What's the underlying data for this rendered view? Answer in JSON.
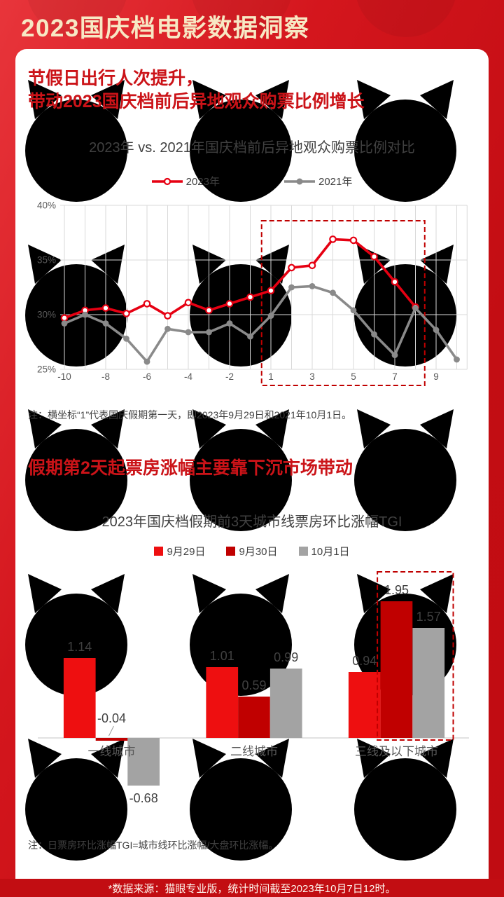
{
  "page": {
    "title": "2023国庆档电影数据洞察",
    "footer": "*数据来源：猫眼专业版，统计时间截至2023年10月7日12时。"
  },
  "icons": {
    "watermark": "maoyan-cat-face",
    "legend_2023_marker": "red-line-open-circle",
    "legend_2021_marker": "gray-line-dot"
  },
  "colors": {
    "background_red": "#d4161d",
    "header_title": "#f7e8c4",
    "heading_red": "#cb1318",
    "series_2023_red": "#e60012",
    "series_2021_gray": "#8a8a8a",
    "bar_red": "#ee0f10",
    "bar_dark_red": "#c00000",
    "bar_gray": "#a3a3a3",
    "grid": "#d9d9d9",
    "highlight_box": "#c00000",
    "footer_band": "#c20d12"
  },
  "section1": {
    "heading_line1": "节假日出行人次提升，",
    "heading_line2": "带动2023国庆档前后异地观众购票比例增长",
    "note": "注：横坐标“1”代表国庆假期第一天，即2023年9月29日和2021年10月1日。"
  },
  "section2": {
    "heading": "假期第2天起票房涨幅主要靠下沉市场带动",
    "note": "注：日票房环比涨幅TGI=城市线环比涨幅/大盘环比涨幅。"
  },
  "chart_data": [
    {
      "type": "line",
      "title": "2023年 vs. 2021年国庆档前后异地观众购票比例对比",
      "legend_position": "top",
      "grid": true,
      "grid_color": "#d9d9d9",
      "x": [
        -10,
        -9,
        -8,
        -7,
        -6,
        -5,
        -4,
        -3,
        -2,
        -1,
        1,
        2,
        3,
        4,
        5,
        6,
        7,
        8,
        9,
        10
      ],
      "x_ticks": [
        -10,
        -8,
        -6,
        -4,
        -2,
        1,
        3,
        5,
        7,
        9
      ],
      "ylim": [
        25,
        40
      ],
      "y_ticks": [
        {
          "v": 40,
          "label": "40%"
        },
        {
          "v": 35,
          "label": "35%"
        },
        {
          "v": 30,
          "label": "30%"
        },
        {
          "v": 25,
          "label": "25%"
        }
      ],
      "series": [
        {
          "name": "2023年",
          "color": "#e60012",
          "marker": "open-circle",
          "values": [
            29.7,
            30.4,
            30.6,
            30.1,
            31.0,
            29.9,
            31.1,
            30.4,
            31.0,
            31.6,
            32.2,
            34.3,
            34.5,
            36.9,
            36.8,
            35.3,
            33.0,
            30.7,
            null,
            null
          ]
        },
        {
          "name": "2021年",
          "color": "#8a8a8a",
          "marker": "dot",
          "values": [
            29.2,
            30.0,
            29.2,
            27.8,
            25.7,
            28.7,
            28.4,
            28.4,
            29.2,
            28.0,
            29.9,
            32.5,
            32.6,
            32.0,
            30.4,
            28.2,
            26.3,
            30.6,
            28.6,
            25.9
          ]
        }
      ],
      "highlight_box": {
        "from_x": 1,
        "to_x": 8,
        "color": "#c00000",
        "style": "dashed"
      }
    },
    {
      "type": "bar",
      "title": "2023年国庆档假期前3天城市线票房环比涨幅TGI",
      "legend_position": "top",
      "grid": false,
      "categories": [
        "一线城市",
        "二线城市",
        "三线及以下城市"
      ],
      "series": [
        {
          "name": "9月29日",
          "color": "#ee0f10",
          "values": [
            1.14,
            1.01,
            0.94
          ]
        },
        {
          "name": "9月30日",
          "color": "#c00000",
          "values": [
            -0.04,
            0.59,
            1.95
          ]
        },
        {
          "name": "10月1日",
          "color": "#a3a3a3",
          "values": [
            -0.68,
            0.99,
            1.57
          ]
        }
      ],
      "highlight_box": {
        "category": "三线及以下城市",
        "series": [
          "9月30日",
          "10月1日"
        ],
        "color": "#c00000",
        "style": "dashed"
      }
    }
  ]
}
